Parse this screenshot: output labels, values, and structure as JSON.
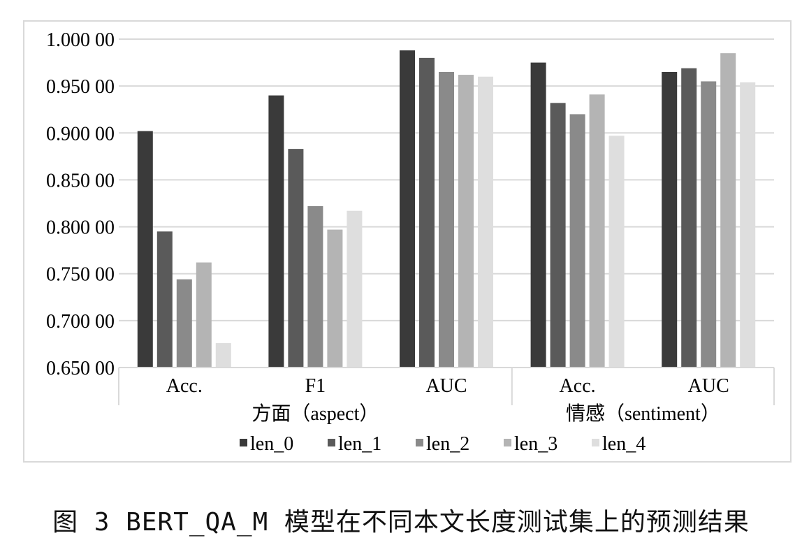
{
  "chart_data": {
    "type": "bar",
    "groups": [
      {
        "label": "方面（aspect）",
        "categories": [
          "Acc.",
          "F1",
          "AUC"
        ]
      },
      {
        "label": "情感（sentiment）",
        "categories": [
          "Acc.",
          "AUC"
        ]
      }
    ],
    "categories": [
      "Acc.",
      "F1",
      "AUC",
      "Acc.",
      "AUC"
    ],
    "series": [
      {
        "name": "len_0",
        "color": "#3a3a3a",
        "values": [
          0.902,
          0.94,
          0.988,
          0.975,
          0.965
        ]
      },
      {
        "name": "len_1",
        "color": "#5a5a5a",
        "values": [
          0.795,
          0.883,
          0.98,
          0.932,
          0.969
        ]
      },
      {
        "name": "len_2",
        "color": "#8a8a8a",
        "values": [
          0.744,
          0.822,
          0.965,
          0.92,
          0.955
        ]
      },
      {
        "name": "len_3",
        "color": "#b4b4b4",
        "values": [
          0.762,
          0.797,
          0.962,
          0.941,
          0.985
        ]
      },
      {
        "name": "len_4",
        "color": "#dedede",
        "values": [
          0.676,
          0.817,
          0.96,
          0.897,
          0.954
        ]
      }
    ],
    "yticks": [
      "0.650 00",
      "0.700 00",
      "0.750 00",
      "0.800 00",
      "0.850 00",
      "0.900 00",
      "0.950 00",
      "1.000 00"
    ],
    "ylim": [
      0.65,
      1.0
    ],
    "grid": true,
    "legend": "bottom"
  },
  "caption": "图 3  BERT_QA_M 模型在不同本文长度测试集上的预测结果"
}
